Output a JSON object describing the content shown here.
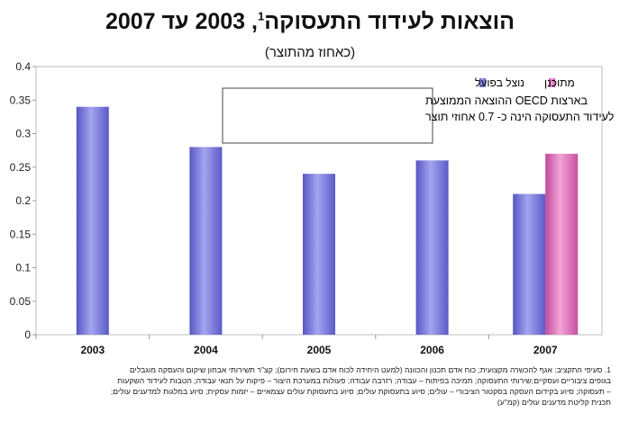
{
  "title": {
    "main": "הוצאות לעידוד התעסוקה",
    "superscript": "1",
    "rest": ", 2003 עד 2007"
  },
  "subtitle": "(כאחוז מהתוצר)",
  "annotation": [
    "בארצות OECD ההוצאה הממוצעת",
    "לעידוד התעסוקה הינה כ- 0.7 אחוזי תוצר"
  ],
  "footnote": [
    "1. סעיפי התקציב: אגף להכשרה מקצועית; כוח אדם תכנון והכוונה (למעט היחידה לכוח אדם בשעת חירום); קצ\"ר תשירותי אבחון שיקום והעסקה מוגבלים",
    "בגופים ציבוריים ועסקיים;שירותי התעסוקה; תמיכה בפיתוח – עבודה; רזרבה עבודה; פעולות במערכת היצור – פיקוח על תנאי עבודה; הטבות לעידוד השקעות",
    "– תעסוקה; סיוע בקידום העסקה בסקטור הציבורי – עולים; סיוע בתעסוקת עולים; סיוע בתעסוקת עולים עצמאיים – יזמות עסקית; סיוע במלגות למדענים עולים;",
    "תכנית קליטת מדענים עולים (קמ\"ע)"
  ],
  "chart_data": {
    "type": "bar",
    "categories": [
      "2003",
      "2004",
      "2005",
      "2006",
      "2007"
    ],
    "series": [
      {
        "name": "נוצל בפועל",
        "color": "#7b7bdb",
        "values": [
          0.34,
          0.28,
          0.24,
          0.26,
          0.21
        ]
      },
      {
        "name": "מתוכנן",
        "color": "#d96fb8",
        "values": [
          null,
          null,
          null,
          null,
          0.27
        ]
      }
    ],
    "ylim": [
      0,
      0.4
    ],
    "yticks": [
      "0",
      "0.05",
      "0.1",
      "0.15",
      "0.2",
      "0.25",
      "0.3",
      "0.35",
      "0.4"
    ],
    "grid": false,
    "legend_position": "top-right"
  }
}
